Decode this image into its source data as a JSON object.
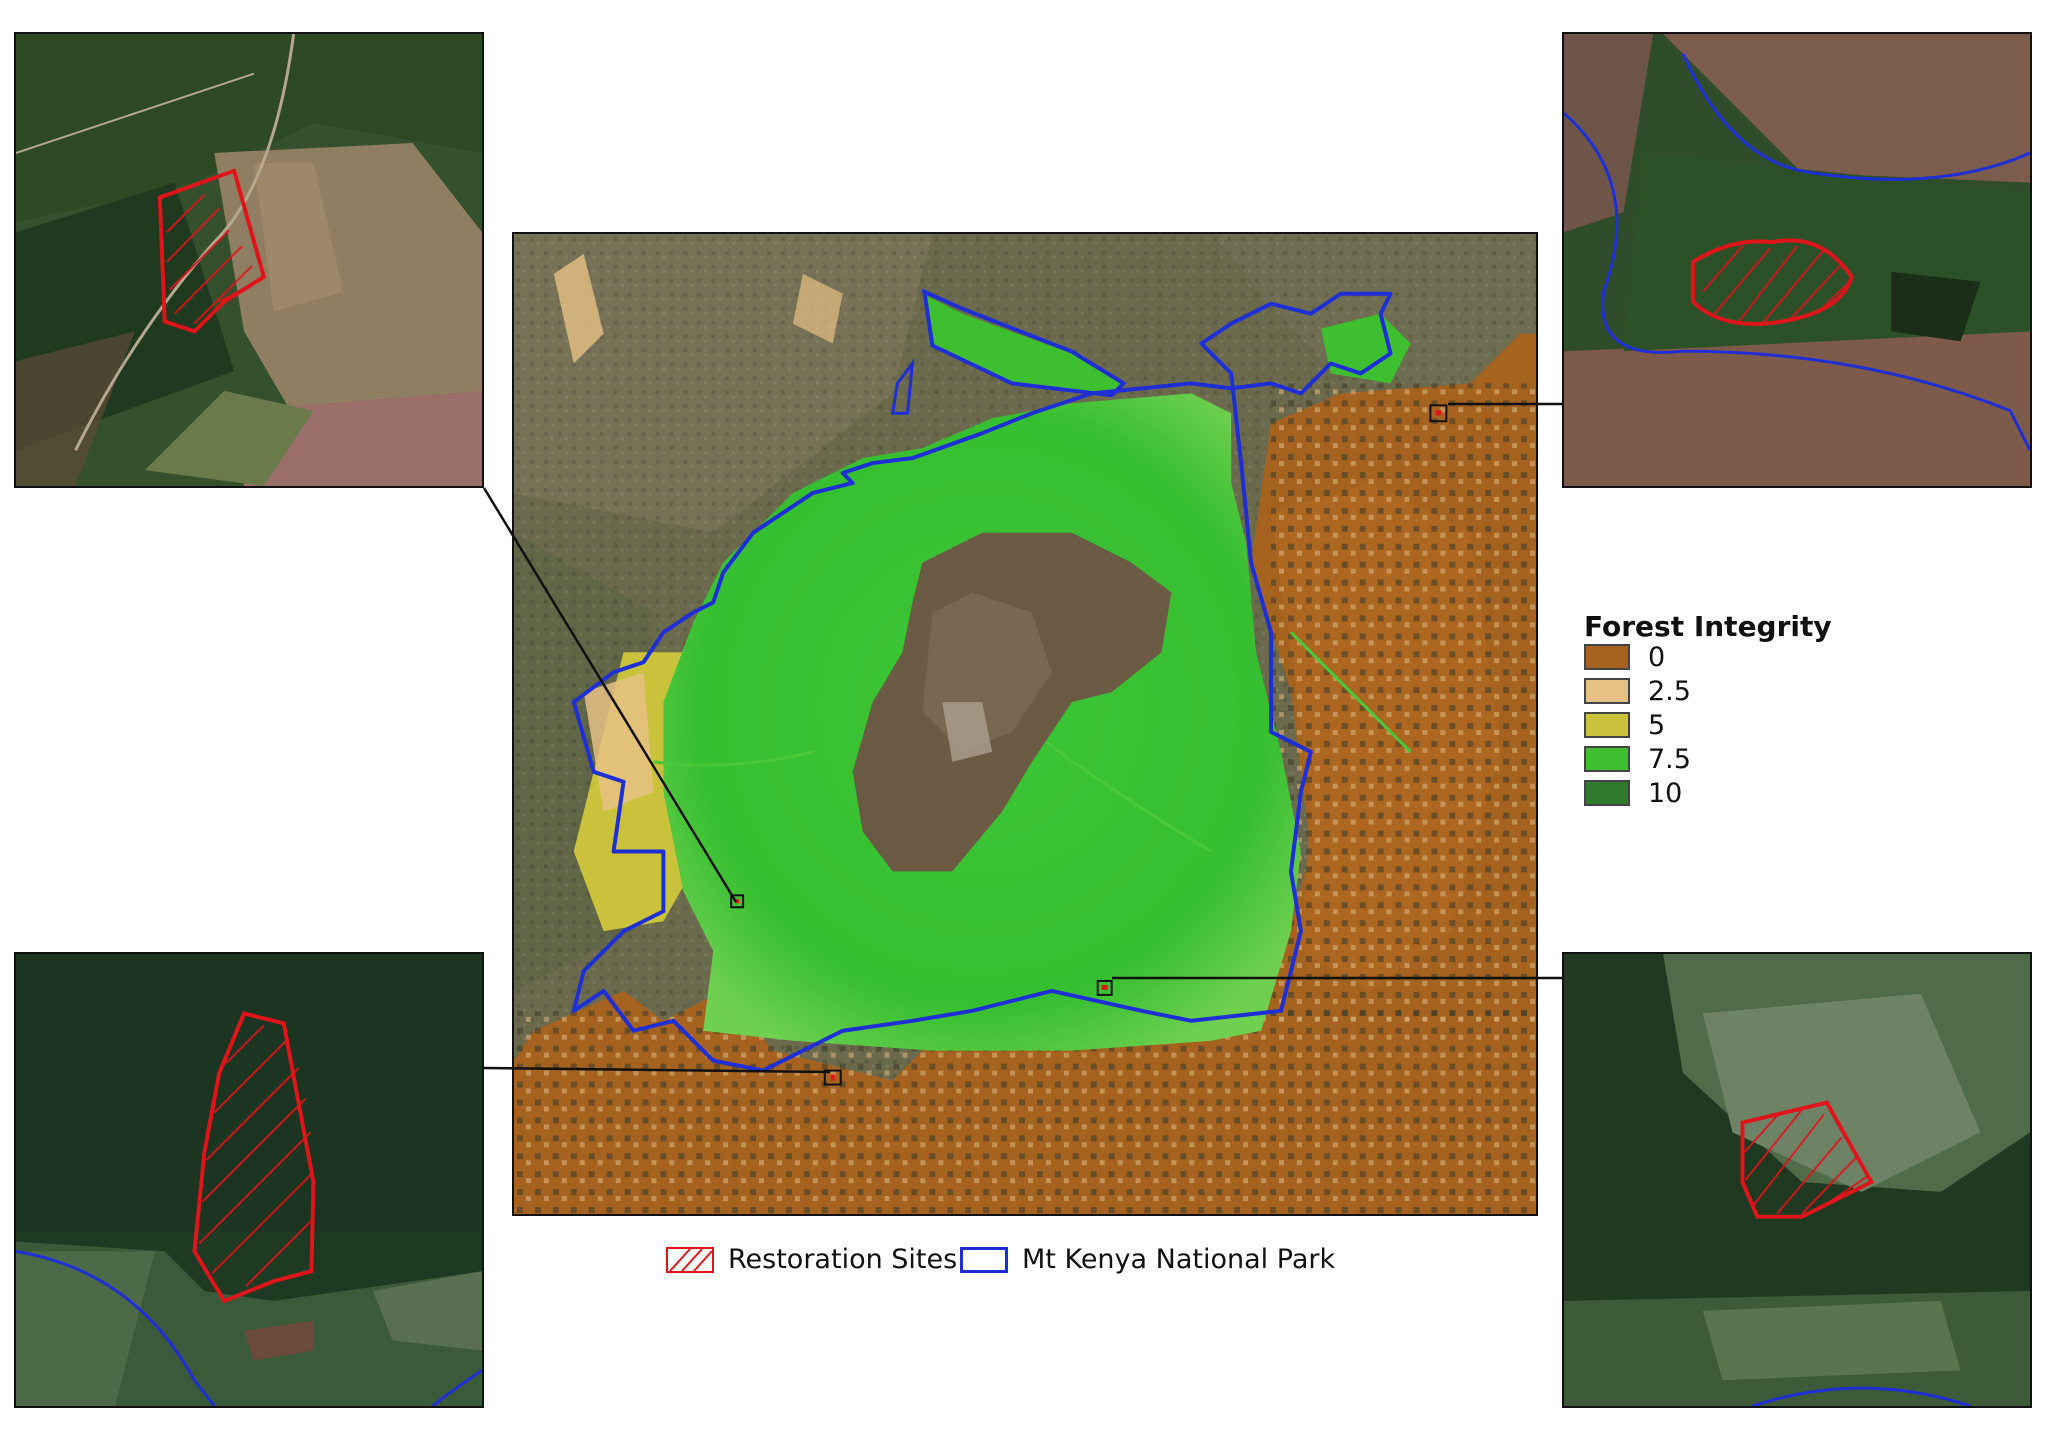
{
  "map": {
    "legend": {
      "title": "Forest Integrity",
      "items": [
        {
          "label": "0",
          "color": "#a6631f"
        },
        {
          "label": "2.5",
          "color": "#e6c185"
        },
        {
          "label": "5",
          "color": "#c9c23a"
        },
        {
          "label": "7.5",
          "color": "#3dbf2f"
        },
        {
          "label": "10",
          "color": "#2f7a2c"
        }
      ]
    },
    "key": {
      "restoration_sites": "Restoration Sites",
      "national_park": "Mt Kenya National Park"
    },
    "colors": {
      "restoration": "#e0141b",
      "park_boundary": "#1f2fd6",
      "frame": "#111111"
    },
    "insets": [
      "top-left",
      "top-right",
      "bottom-left",
      "bottom-right"
    ]
  }
}
